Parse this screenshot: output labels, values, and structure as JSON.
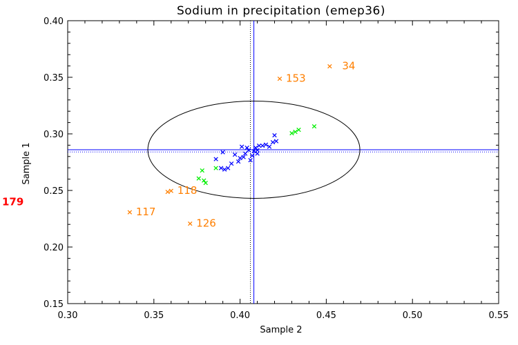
{
  "chart_data": {
    "type": "scatter",
    "title": "Sodium in precipitation (emep36)",
    "xlabel": "Sample 2",
    "ylabel": "Sample 1",
    "xlim": [
      0.3,
      0.55
    ],
    "ylim": [
      0.15,
      0.4
    ],
    "xticks": [
      "0.30",
      "0.35",
      "0.40",
      "0.45",
      "0.50",
      "0.55"
    ],
    "yticks": [
      "0.15",
      "0.20",
      "0.25",
      "0.30",
      "0.35",
      "0.40"
    ],
    "colors": {
      "blue": "#0000ff",
      "green": "#00ee00",
      "orange": "#ff7f00",
      "red": "#ff0000",
      "ellipse": "#000000"
    },
    "marker_glyph": "×",
    "median_lines": {
      "x_solid": 0.408,
      "x_dotted": 0.406,
      "y_solid": 0.286,
      "y_dotted": 0.284
    },
    "ellipse": {
      "cx": 0.408,
      "cy": 0.286,
      "rx": 0.0615,
      "ry": 0.043
    },
    "offscale_label": {
      "text": "179",
      "y": 0.24
    },
    "series": [
      {
        "name": "blue",
        "color": "#0000ff",
        "points": [
          [
            0.386,
            0.278
          ],
          [
            0.389,
            0.27
          ],
          [
            0.39,
            0.284
          ],
          [
            0.391,
            0.269
          ],
          [
            0.393,
            0.27
          ],
          [
            0.395,
            0.274
          ],
          [
            0.397,
            0.282
          ],
          [
            0.399,
            0.276
          ],
          [
            0.4,
            0.279
          ],
          [
            0.401,
            0.289
          ],
          [
            0.402,
            0.28
          ],
          [
            0.403,
            0.283
          ],
          [
            0.404,
            0.288
          ],
          [
            0.405,
            0.286
          ],
          [
            0.406,
            0.277
          ],
          [
            0.407,
            0.281
          ],
          [
            0.408,
            0.285
          ],
          [
            0.409,
            0.288
          ],
          [
            0.41,
            0.286
          ],
          [
            0.41,
            0.283
          ],
          [
            0.411,
            0.29
          ],
          [
            0.413,
            0.29
          ],
          [
            0.415,
            0.291
          ],
          [
            0.417,
            0.289
          ],
          [
            0.419,
            0.293
          ],
          [
            0.42,
            0.299
          ],
          [
            0.421,
            0.294
          ]
        ]
      },
      {
        "name": "green",
        "color": "#00ee00",
        "points": [
          [
            0.376,
            0.261
          ],
          [
            0.378,
            0.268
          ],
          [
            0.379,
            0.259
          ],
          [
            0.38,
            0.257
          ],
          [
            0.386,
            0.27
          ],
          [
            0.43,
            0.301
          ],
          [
            0.432,
            0.302
          ],
          [
            0.434,
            0.304
          ],
          [
            0.443,
            0.307
          ]
        ]
      },
      {
        "name": "orange",
        "color": "#ff7f00",
        "points": [
          {
            "x": 0.336,
            "y": 0.231,
            "label": "117"
          },
          {
            "x": 0.358,
            "y": 0.249,
            "label": ""
          },
          {
            "x": 0.36,
            "y": 0.25,
            "label": "118"
          },
          {
            "x": 0.371,
            "y": 0.221,
            "label": "126"
          },
          {
            "x": 0.423,
            "y": 0.349,
            "label": "153"
          },
          {
            "x": 0.452,
            "y": 0.36,
            "label": "34"
          }
        ]
      }
    ]
  }
}
